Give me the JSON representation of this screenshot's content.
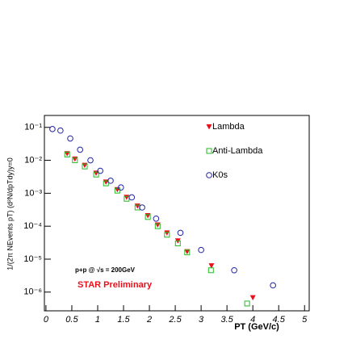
{
  "chart_data": {
    "type": "scatter",
    "log_y": true,
    "xlabel": "PT (GeV/c)",
    "ylabel": "1/(2π NEvents pT) (d²N/dpTdy)y=0",
    "annotations": [
      "p+p @ √s = 200GeV",
      "STAR Preliminary"
    ],
    "xlim": [
      -0.03,
      5.09
    ],
    "ylim": [
      2.7e-07,
      0.23
    ],
    "xticks": [
      0,
      0.5,
      1,
      1.5,
      2,
      2.5,
      3,
      3.5,
      4,
      4.5,
      5
    ],
    "yticks": [
      {
        "value": 0.1,
        "label": "10⁻¹"
      },
      {
        "value": 0.01,
        "label": "10⁻²"
      },
      {
        "value": 0.001,
        "label": "10⁻³"
      },
      {
        "value": 0.0001,
        "label": "10⁻⁴"
      },
      {
        "value": 1e-05,
        "label": "10⁻⁵"
      },
      {
        "value": 1e-06,
        "label": "10⁻⁶"
      }
    ],
    "series": [
      {
        "name": "Lambda",
        "color": "#e8101a",
        "marker": "triangle-down",
        "x": [
          0.41,
          0.56,
          0.75,
          0.97,
          1.16,
          1.38,
          1.56,
          1.77,
          1.97,
          2.16,
          2.34,
          2.55,
          2.73,
          3.2,
          4.0
        ],
        "values": [
          0.016,
          0.011,
          0.0071,
          0.0041,
          0.0022,
          0.0013,
          0.00076,
          0.00041,
          0.00021,
          0.00011,
          6.3e-05,
          3.6e-05,
          1.7e-05,
          6.3e-06,
          6.8e-07
        ]
      },
      {
        "name": "Anti-Lambda",
        "color": "#22bb22",
        "marker": "square",
        "x": [
          0.41,
          0.56,
          0.75,
          0.97,
          1.16,
          1.38,
          1.56,
          1.77,
          1.97,
          2.16,
          2.34,
          2.55,
          2.73,
          3.19,
          3.89
        ],
        "values": [
          0.015,
          0.01,
          0.0065,
          0.0037,
          0.002,
          0.0012,
          0.00068,
          0.00037,
          0.00019,
          0.0001,
          5.5e-05,
          3e-05,
          1.6e-05,
          4.6e-06,
          4.5e-07
        ]
      },
      {
        "name": "K0s",
        "color": "#2222aa",
        "marker": "circle",
        "x": [
          0.125,
          0.28,
          0.47,
          0.66,
          0.86,
          1.05,
          1.25,
          1.45,
          1.66,
          1.86,
          2.13,
          2.6,
          3.0,
          3.64,
          4.39
        ],
        "values": [
          0.089,
          0.08,
          0.046,
          0.021,
          0.01,
          0.0048,
          0.0024,
          0.0015,
          0.00075,
          0.00037,
          0.00017,
          6.3e-05,
          1.9e-05,
          4.6e-06,
          1.6e-06
        ]
      }
    ]
  }
}
